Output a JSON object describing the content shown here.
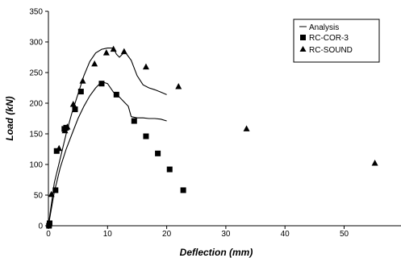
{
  "chart_data": {
    "type": "scatter",
    "title": "",
    "xlabel": "Deflection (mm)",
    "ylabel": "Load (kN)",
    "xlim": [
      0,
      60
    ],
    "ylim": [
      0,
      350
    ],
    "x_ticks": [
      0,
      10,
      20,
      30,
      40,
      50
    ],
    "y_ticks": [
      0,
      50,
      100,
      150,
      200,
      250,
      300,
      350
    ],
    "x_tick_labels": [
      "0",
      "10",
      "20",
      "30",
      "40",
      "50"
    ],
    "y_tick_labels": [
      "0",
      "50",
      "100",
      "150",
      "200",
      "250",
      "300",
      "350"
    ],
    "grid": false,
    "legend_position": "top-right",
    "series": [
      {
        "name": "Analysis",
        "style": "line",
        "color": "#000000",
        "segments": [
          [
            [
              0,
              0
            ],
            [
              1,
              55
            ],
            [
              2,
              95
            ],
            [
              3,
              125
            ],
            [
              4,
              150
            ],
            [
              5,
              175
            ],
            [
              6,
              195
            ],
            [
              7,
              212
            ],
            [
              8,
              225
            ],
            [
              9,
              235
            ],
            [
              10,
              232
            ],
            [
              11,
              218
            ],
            [
              12,
              210
            ],
            [
              13,
              200
            ],
            [
              13.5,
              195
            ],
            [
              14,
              178
            ],
            [
              15,
              176
            ],
            [
              16,
              176
            ],
            [
              17,
              175
            ],
            [
              18,
              175
            ],
            [
              19,
              174
            ],
            [
              20,
              171
            ]
          ],
          [
            [
              0,
              0
            ],
            [
              1,
              70
            ],
            [
              2,
              110
            ],
            [
              3,
              150
            ],
            [
              4,
              185
            ],
            [
              5,
              215
            ],
            [
              6,
              245
            ],
            [
              7,
              268
            ],
            [
              8,
              282
            ],
            [
              9,
              288
            ],
            [
              10,
              290
            ],
            [
              11,
              290
            ],
            [
              11.5,
              280
            ],
            [
              12,
              275
            ],
            [
              12.5,
              280
            ],
            [
              13,
              283
            ],
            [
              14,
              270
            ],
            [
              15,
              245
            ],
            [
              16,
              230
            ],
            [
              17,
              225
            ],
            [
              18,
              222
            ],
            [
              19,
              218
            ],
            [
              20,
              214
            ]
          ]
        ]
      },
      {
        "name": "RC-COR-3",
        "style": "marker",
        "marker": "square",
        "color": "#000000",
        "points": [
          [
            0.1,
            0
          ],
          [
            0.2,
            4
          ],
          [
            1.2,
            58
          ],
          [
            1.4,
            122
          ],
          [
            2.7,
            158
          ],
          [
            3.0,
            160
          ],
          [
            4.5,
            190
          ],
          [
            5.5,
            219
          ],
          [
            9.0,
            232
          ],
          [
            11.5,
            214
          ],
          [
            14.5,
            171
          ],
          [
            16.5,
            146
          ],
          [
            18.5,
            118
          ],
          [
            20.5,
            92
          ],
          [
            22.8,
            58
          ]
        ]
      },
      {
        "name": "RC-SOUND",
        "style": "marker",
        "marker": "triangle",
        "color": "#000000",
        "points": [
          [
            0.1,
            2
          ],
          [
            0.5,
            51
          ],
          [
            1.8,
            126
          ],
          [
            2.8,
            155
          ],
          [
            3.2,
            161
          ],
          [
            4.2,
            198
          ],
          [
            5.8,
            236
          ],
          [
            7.8,
            264
          ],
          [
            9.8,
            282
          ],
          [
            11.0,
            288
          ],
          [
            12.8,
            284
          ],
          [
            16.5,
            259
          ],
          [
            22.0,
            227
          ],
          [
            33.5,
            158
          ],
          [
            55.2,
            102
          ]
        ]
      }
    ]
  }
}
